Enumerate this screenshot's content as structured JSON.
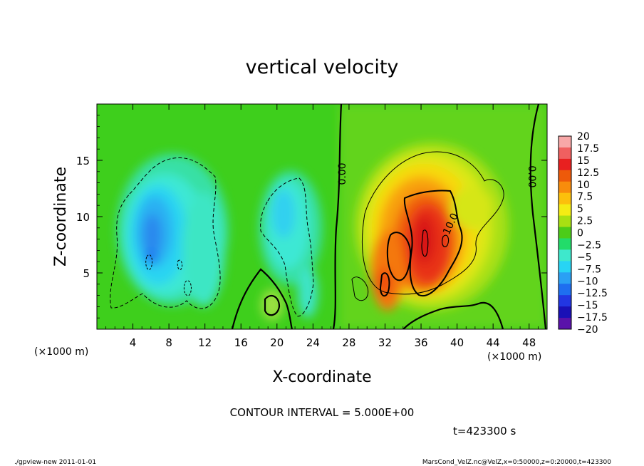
{
  "chart_data": {
    "type": "heatmap",
    "title": "vertical velocity",
    "xlabel": "X-coordinate",
    "ylabel": "Z-coordinate",
    "x_unit": "(×1000 m)",
    "y_unit": "(×1000 m)",
    "xlim": [
      0,
      50
    ],
    "ylim": [
      0,
      20
    ],
    "x_ticks": [
      "4",
      "8",
      "12",
      "16",
      "20",
      "24",
      "28",
      "32",
      "36",
      "40",
      "44",
      "48"
    ],
    "y_ticks": [
      "5",
      "10",
      "15"
    ],
    "colorbar": {
      "labels": [
        "20",
        "17.5",
        "15",
        "12.5",
        "10",
        "7.5",
        "5",
        "2.5",
        "0",
        "−2.5",
        "−5",
        "−7.5",
        "−10",
        "−12.5",
        "−15",
        "−17.5",
        "−20"
      ],
      "colors": [
        "#f8a8a8",
        "#f06060",
        "#e82020",
        "#ee5a0a",
        "#f88c0c",
        "#fcc00c",
        "#f4ec14",
        "#a8e012",
        "#4ccc18",
        "#22dc6a",
        "#3ee8cc",
        "#28d4f4",
        "#2aa0f4",
        "#1e6ef0",
        "#2236e2",
        "#1a10b6",
        "#5a12aa"
      ]
    },
    "contour_labels": [
      "0.00",
      "0.00",
      "10.0"
    ],
    "contour_interval": "CONTOUR INTERVAL = 5.000E+00",
    "time": "t=423300 s"
  },
  "footer": {
    "left": "./gpview-new  2011-01-01",
    "right": "MarsCond_VelZ.nc@VelZ,x=0:50000,z=0:20000,t=423300"
  }
}
